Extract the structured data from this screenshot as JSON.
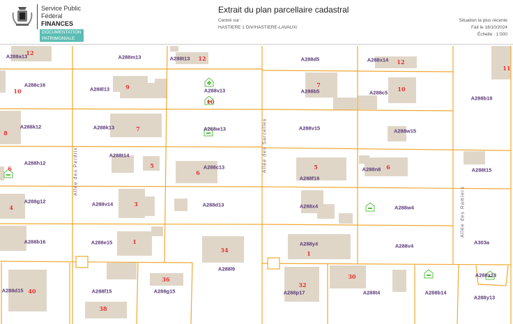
{
  "header": {
    "org_line1": "Service Public",
    "org_line2": "Fédéral",
    "org_line3": "FINANCES",
    "tag1": "DOCUMENTATION",
    "tag2": "PATRIMONIALE",
    "title": "Extrait du plan parcellaire cadastral",
    "centered_label": "Centré sur :",
    "centered_value": "HASTIERE 1 DIV/HASTIERE-LAVAUX/",
    "situation": "Situation la plus récente",
    "date": "Fait le 18/10/2024",
    "scale": "Échelle : 1:500"
  },
  "colors": {
    "parcel_line": "#f0a830",
    "building": "#e0d6c8",
    "parcel_label": "#5b3a78",
    "house_number": "#e43030",
    "tag_bg": "#5bbdb4",
    "icon_green": "#55c040"
  },
  "map": {
    "parcels": [
      "A288a13",
      "A288m13",
      "A288t13",
      "A288d5",
      "A288x14",
      "A288c16",
      "A288l13",
      "A288v13",
      "A288b5",
      "A288c5",
      "A288b18",
      "A288k12",
      "A288k13",
      "A288w13",
      "A288v15",
      "A288w15",
      "A288h12",
      "A288t14",
      "A288c13",
      "A288f16",
      "A288n8",
      "A288t15",
      "A288g12",
      "A288v14",
      "A288d13",
      "A288x4",
      "A288w4",
      "A288b16",
      "A288e15",
      "A288y4",
      "A288v4",
      "A303a",
      "A288l9",
      "A288d15",
      "A288f15",
      "A288g15",
      "A288p17",
      "A288t4",
      "A288b14",
      "A288x13",
      "A288y13"
    ],
    "house_numbers": [
      "12",
      "12",
      "12",
      "11",
      "10",
      "9",
      "10",
      "7",
      "10",
      "8",
      "7",
      "6",
      "5",
      "6",
      "5",
      "6",
      "4",
      "3",
      "1",
      "34",
      "1",
      "40",
      "36",
      "38",
      "32",
      "30"
    ],
    "streets": [
      "Allée des Perdrix",
      "Allée des Sarcelles",
      "Allée des Ramiers"
    ],
    "icons": [
      "house-plus-icon",
      "house-icon",
      "house-icon",
      "house-icon",
      "house-icon",
      "house-icon",
      "house-icon"
    ]
  }
}
